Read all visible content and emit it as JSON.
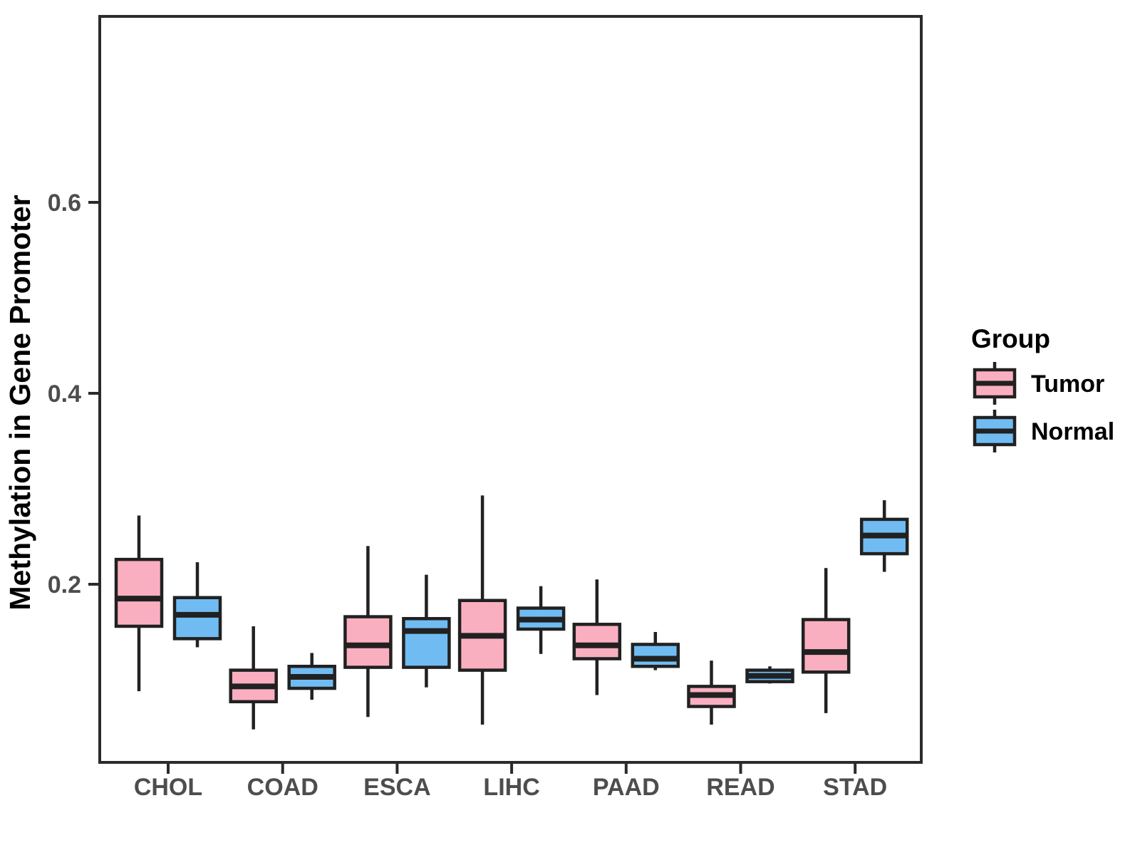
{
  "chart_data": {
    "type": "boxplot",
    "title": "",
    "xlabel": "",
    "ylabel": "Methylation in Gene Promoter",
    "legend_title": "Group",
    "legend_position": "right",
    "grid": false,
    "categories": [
      "CHOL",
      "COAD",
      "ESCA",
      "LIHC",
      "PAAD",
      "READ",
      "STAD"
    ],
    "y_ticks": [
      0.2,
      0.4,
      0.6
    ],
    "ylim": [
      0.013,
      0.79
    ],
    "series": [
      {
        "name": "Tumor",
        "color": "#FAAFC1",
        "boxes": [
          {
            "category": "CHOL",
            "min": 0.088,
            "q1": 0.156,
            "median": 0.185,
            "q3": 0.226,
            "max": 0.272
          },
          {
            "category": "COAD",
            "min": 0.048,
            "q1": 0.077,
            "median": 0.093,
            "q3": 0.11,
            "max": 0.156
          },
          {
            "category": "ESCA",
            "min": 0.061,
            "q1": 0.113,
            "median": 0.136,
            "q3": 0.166,
            "max": 0.24
          },
          {
            "category": "LIHC",
            "min": 0.053,
            "q1": 0.11,
            "median": 0.146,
            "q3": 0.183,
            "max": 0.293
          },
          {
            "category": "PAAD",
            "min": 0.084,
            "q1": 0.122,
            "median": 0.136,
            "q3": 0.158,
            "max": 0.205
          },
          {
            "category": "READ",
            "min": 0.053,
            "q1": 0.072,
            "median": 0.084,
            "q3": 0.093,
            "max": 0.12
          },
          {
            "category": "STAD",
            "min": 0.065,
            "q1": 0.108,
            "median": 0.129,
            "q3": 0.163,
            "max": 0.217
          }
        ]
      },
      {
        "name": "Normal",
        "color": "#70BCF2",
        "boxes": [
          {
            "category": "CHOL",
            "min": 0.134,
            "q1": 0.143,
            "median": 0.168,
            "q3": 0.186,
            "max": 0.223
          },
          {
            "category": "COAD",
            "min": 0.079,
            "q1": 0.091,
            "median": 0.103,
            "q3": 0.114,
            "max": 0.128
          },
          {
            "category": "ESCA",
            "min": 0.092,
            "q1": 0.113,
            "median": 0.151,
            "q3": 0.164,
            "max": 0.21
          },
          {
            "category": "LIHC",
            "min": 0.127,
            "q1": 0.153,
            "median": 0.163,
            "q3": 0.175,
            "max": 0.198
          },
          {
            "category": "PAAD",
            "min": 0.11,
            "q1": 0.114,
            "median": 0.122,
            "q3": 0.137,
            "max": 0.15
          },
          {
            "category": "READ",
            "min": 0.096,
            "q1": 0.098,
            "median": 0.104,
            "q3": 0.11,
            "max": 0.114
          },
          {
            "category": "STAD",
            "min": 0.213,
            "q1": 0.232,
            "median": 0.251,
            "q3": 0.268,
            "max": 0.288
          }
        ]
      }
    ],
    "colors": {
      "tumor_fill": "#FAAFC1",
      "normal_fill": "#70BCF2",
      "line": "#212121",
      "panel_border": "#2B2B2B",
      "tick_label": "#4D4D4D",
      "background": "#FFFFFF"
    }
  }
}
